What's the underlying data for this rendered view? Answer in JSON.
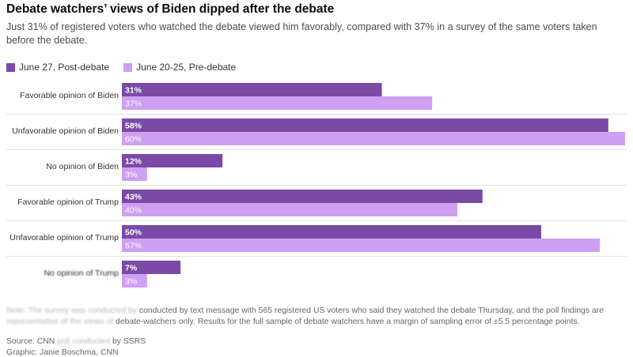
{
  "title": "Debate watchers’ views of Biden dipped after the debate",
  "subtitle": "Just 31% of registered voters who watched the debate viewed him favorably, compared with 37% in a survey of the same voters taken before the debate.",
  "colors": {
    "post": "#7a4aa6",
    "pre": "#cf9ff2",
    "divider": "#e0e0e0"
  },
  "chart_data": {
    "type": "bar",
    "orientation": "horizontal",
    "title": "Debate watchers’ views of Biden dipped after the debate",
    "categories": [
      "Favorable opinion of Biden",
      "Unfavorable opinion of Biden",
      "No opinion of Biden",
      "Favorable opinion of Trump",
      "Unfavorable opinion of Trump",
      "No opinion of Trump"
    ],
    "series": [
      {
        "name": "June 27, Post-debate",
        "values": [
          31,
          58,
          12,
          43,
          50,
          7
        ],
        "labels": [
          "31%",
          "58%",
          "12%",
          "43%",
          "50%",
          "7%"
        ]
      },
      {
        "name": "June 20-25, Pre-debate",
        "values": [
          37,
          60,
          3,
          40,
          57,
          3
        ],
        "labels": [
          "37%",
          "60%",
          "3%",
          "40%",
          "57%",
          "3%"
        ]
      }
    ],
    "xlim": [
      0,
      60
    ],
    "legend": "top-left",
    "grid": false
  },
  "footnote": {
    "obscured_start_1": "Note: The survey was conducted by",
    "line1": "conducted by text message with 565 registered US voters who said they watched the debate Thursday, and the poll findings are",
    "obscured_start_2": "representative of the views of",
    "line2": "debate-watchers only. Results for the full sample of debate watchers have a margin of sampling error of ±5.5 percentage points."
  },
  "source": {
    "label_prefix": "Source: CNN",
    "obscured_part": "poll conducted",
    "label_suffix": "by SSRS",
    "graphic": "Graphic: Janie Boschma, CNN"
  }
}
